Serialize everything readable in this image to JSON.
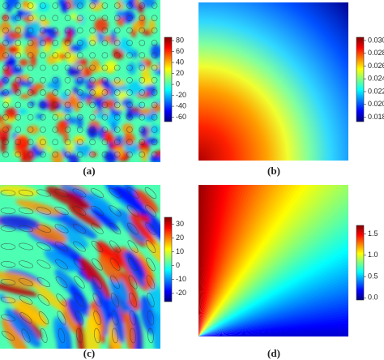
{
  "chart_data": [
    {
      "type": "heatmap",
      "caption": "(a)",
      "zlim": [
        -68,
        86
      ],
      "zticks": [
        -60,
        -40,
        -20,
        0,
        20,
        40,
        60,
        80
      ]
    },
    {
      "type": "heatmap",
      "caption": "(b)",
      "zlim": [
        0.0173,
        0.0305
      ],
      "zticks": [
        0.018,
        {
          "value": 0.02,
          "label": "0.020"
        },
        0.022,
        0.024,
        0.026,
        0.028,
        {
          "value": 0.03,
          "label": "0.030"
        }
      ]
    },
    {
      "type": "heatmap",
      "caption": "(c)",
      "zlim": [
        -26,
        35
      ],
      "zticks": [
        -20,
        -10,
        0,
        10,
        20,
        30
      ]
    },
    {
      "type": "heatmap",
      "caption": "(d)",
      "zlim": [
        -0.05,
        1.7
      ],
      "zticks": [
        {
          "value": 0,
          "label": "0.0"
        },
        0.5,
        {
          "value": 1,
          "label": "1.0"
        },
        1.5
      ]
    }
  ]
}
